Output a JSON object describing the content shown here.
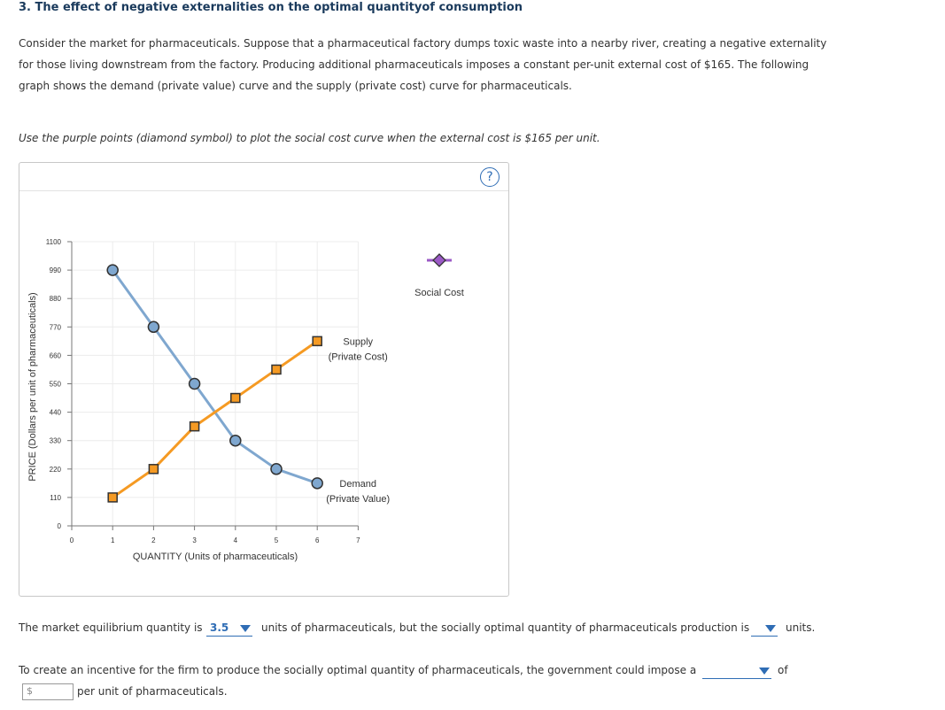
{
  "header": {
    "title": "3. The effect of negative externalities on the optimal quantityof consumption",
    "para1_line1": "Consider the market for pharmaceuticals. Suppose that a pharmaceutical factory dumps toxic waste into a nearby river, creating a negative externality",
    "para1_line2": "for those living downstream from the factory. Producing additional pharmaceuticals imposes a constant per-unit external cost of $165. The following",
    "para1_line3": "graph shows the demand (private value) curve and the supply (private cost) curve for pharmaceuticals.",
    "instruction": "Use the purple points (diamond symbol) to plot the social cost curve when the external cost is $165 per unit."
  },
  "help_label": "?",
  "chart_data": {
    "type": "line",
    "xlabel": "QUANTITY (Units of pharmaceuticals)",
    "ylabel": "PRICE (Dollars per unit of pharmaceuticals)",
    "xlim": [
      0,
      7
    ],
    "ylim": [
      0,
      1100
    ],
    "x_ticks": [
      0,
      1,
      2,
      3,
      4,
      5,
      6,
      7
    ],
    "y_ticks": [
      0,
      110,
      220,
      330,
      440,
      550,
      660,
      770,
      880,
      990,
      1100
    ],
    "grid": true,
    "series": [
      {
        "name": "Demand",
        "label_lines": [
          "Demand",
          "(Private Value)"
        ],
        "color": "#7fa7cf",
        "marker": "circle",
        "marker_fill": "#7fa7cf",
        "x": [
          1,
          2,
          3,
          4,
          5,
          6
        ],
        "y": [
          990,
          770,
          550,
          330,
          220,
          165
        ]
      },
      {
        "name": "Supply",
        "label_lines": [
          "Supply",
          "(Private Cost)"
        ],
        "color": "#f59a23",
        "marker": "square",
        "marker_fill": "#f59a23",
        "x": [
          1,
          2,
          3,
          4,
          5,
          6
        ],
        "y": [
          110,
          220,
          385,
          495,
          605,
          715
        ]
      }
    ],
    "palette_item": {
      "name": "Social Cost",
      "marker": "diamond",
      "color": "#9b59c6"
    }
  },
  "questions": {
    "q1_text_a": "The market equilibrium quantity is",
    "q1_value": "3.5",
    "q1_text_b": "units of pharmaceuticals, but the socially optimal quantity of pharmaceuticals production is",
    "q1_value2": "",
    "q1_text_c": "units.",
    "q2_text_a": "To create an incentive for the firm to produce the socially optimal quantity of pharmaceuticals, the government could impose a",
    "q2_value": "",
    "q2_text_b": "of",
    "q2_currency": "$",
    "q2_text_c": "per unit of pharmaceuticals."
  }
}
